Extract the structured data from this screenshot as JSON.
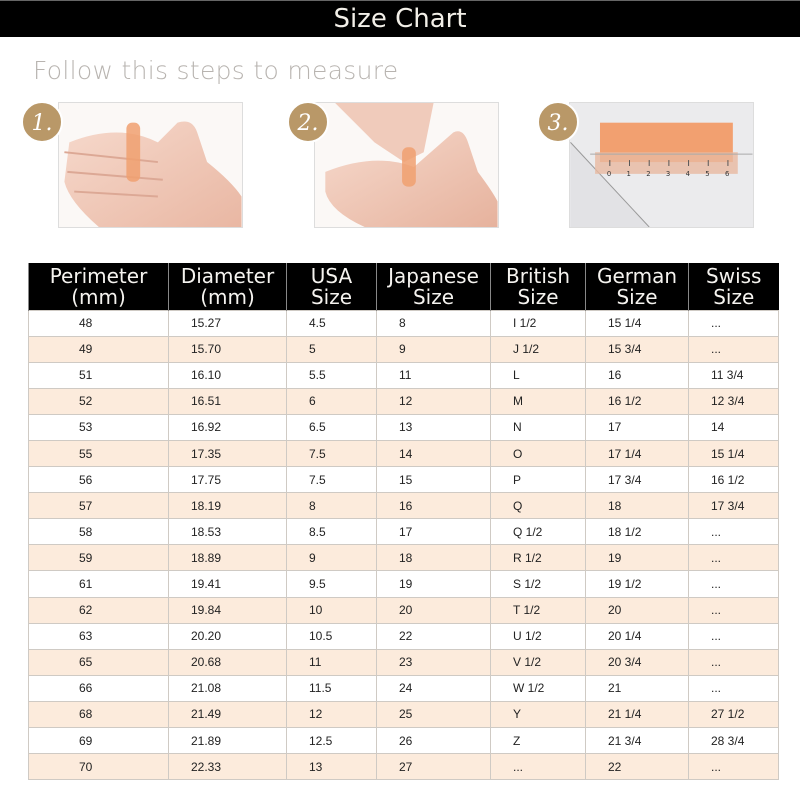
{
  "title": "Size Chart",
  "subtitle": "Follow this steps to measure",
  "steps": [
    {
      "label": "1."
    },
    {
      "label": "2."
    },
    {
      "label": "3."
    }
  ],
  "ruler_labels": [
    "0",
    "1",
    "2",
    "3",
    "4",
    "5",
    "6"
  ],
  "colors": {
    "header_bg": "#000000",
    "badge": "#b99868",
    "stripe": "#fcebdc"
  },
  "table": {
    "headers": [
      [
        "Perimeter",
        "(mm)"
      ],
      [
        "Diameter",
        "(mm)"
      ],
      [
        "USA",
        "Size"
      ],
      [
        "Japanese",
        "Size"
      ],
      [
        "British",
        "Size"
      ],
      [
        "German",
        "Size"
      ],
      [
        "Swiss",
        "Size"
      ]
    ],
    "rows": [
      [
        "48",
        "15.27",
        "4.5",
        "8",
        "I 1/2",
        "15 1/4",
        "..."
      ],
      [
        "49",
        "15.70",
        "5",
        "9",
        "J 1/2",
        "15 3/4",
        "..."
      ],
      [
        "51",
        "16.10",
        "5.5",
        "11",
        "L",
        "16",
        "11 3/4"
      ],
      [
        "52",
        "16.51",
        "6",
        "12",
        "M",
        "16 1/2",
        "12 3/4"
      ],
      [
        "53",
        "16.92",
        "6.5",
        "13",
        "N",
        "17",
        "14"
      ],
      [
        "55",
        "17.35",
        "7.5",
        "14",
        "O",
        "17 1/4",
        "15 1/4"
      ],
      [
        "56",
        "17.75",
        "7.5",
        "15",
        "P",
        "17 3/4",
        "16 1/2"
      ],
      [
        "57",
        "18.19",
        "8",
        "16",
        "Q",
        "18",
        "17 3/4"
      ],
      [
        "58",
        "18.53",
        "8.5",
        "17",
        "Q 1/2",
        "18 1/2",
        "..."
      ],
      [
        "59",
        "18.89",
        "9",
        "18",
        "R 1/2",
        "19",
        "..."
      ],
      [
        "61",
        "19.41",
        "9.5",
        "19",
        "S 1/2",
        "19 1/2",
        "..."
      ],
      [
        "62",
        "19.84",
        "10",
        "20",
        "T 1/2",
        "20",
        "..."
      ],
      [
        "63",
        "20.20",
        "10.5",
        "22",
        "U 1/2",
        "20 1/4",
        "..."
      ],
      [
        "65",
        "20.68",
        "11",
        "23",
        "V 1/2",
        "20 3/4",
        "..."
      ],
      [
        "66",
        "21.08",
        "11.5",
        "24",
        "W 1/2",
        "21",
        "..."
      ],
      [
        "68",
        "21.49",
        "12",
        "25",
        "Y",
        "21 1/4",
        "27 1/2"
      ],
      [
        "69",
        "21.89",
        "12.5",
        "26",
        "Z",
        "21 3/4",
        "28 3/4"
      ],
      [
        "70",
        "22.33",
        "13",
        "27",
        "...",
        "22",
        "..."
      ]
    ]
  }
}
